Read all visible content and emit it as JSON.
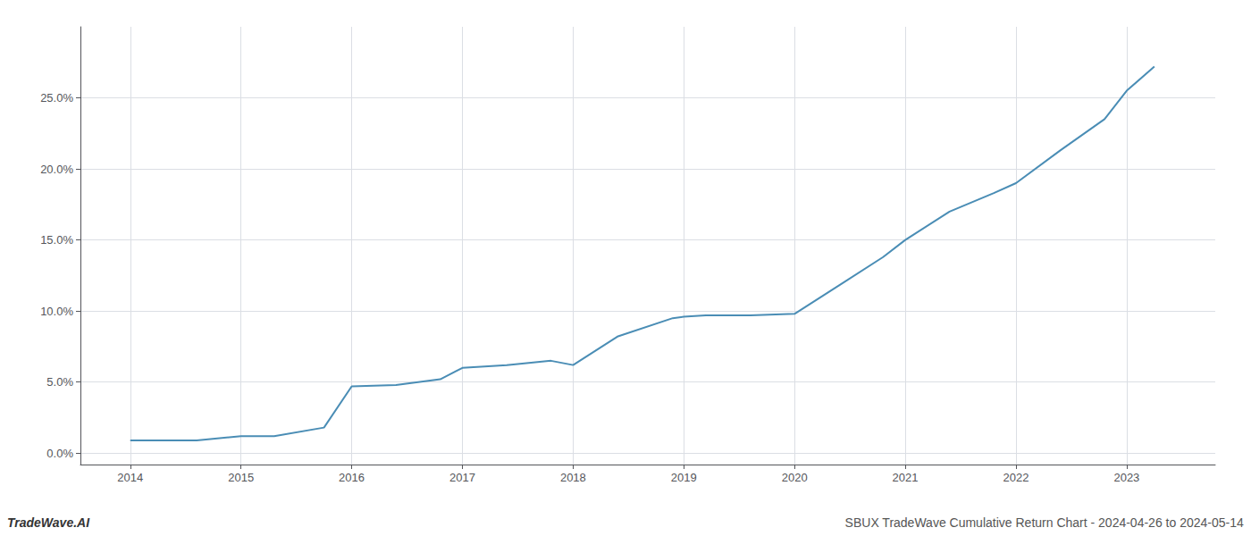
{
  "chart_data": {
    "type": "line",
    "annotations": [
      "TradeWave.AI",
      "SBUX TradeWave Cumulative Return Chart - 2024-04-26 to 2024-05-14"
    ],
    "x": [
      2014.0,
      2014.25,
      2014.6,
      2015.0,
      2015.3,
      2015.75,
      2016.0,
      2016.4,
      2016.8,
      2017.0,
      2017.4,
      2017.8,
      2018.0,
      2018.4,
      2018.9,
      2019.0,
      2019.2,
      2019.6,
      2020.0,
      2020.4,
      2020.8,
      2021.0,
      2021.4,
      2021.8,
      2022.0,
      2022.4,
      2022.8,
      2023.0,
      2023.25
    ],
    "values": [
      0.009,
      0.009,
      0.009,
      0.012,
      0.012,
      0.018,
      0.047,
      0.048,
      0.052,
      0.06,
      0.062,
      0.065,
      0.062,
      0.082,
      0.095,
      0.096,
      0.097,
      0.097,
      0.098,
      0.118,
      0.138,
      0.15,
      0.17,
      0.183,
      0.19,
      0.213,
      0.235,
      0.255,
      0.272
    ],
    "color": "#4a8db5",
    "xlim": [
      2013.55,
      2023.8
    ],
    "xticks": [
      2014,
      2015,
      2016,
      2017,
      2018,
      2019,
      2020,
      2021,
      2022,
      2023
    ],
    "ylim": [
      -0.008,
      0.3
    ],
    "yticks": [
      {
        "value": 0.0,
        "label": "0.0%"
      },
      {
        "value": 0.05,
        "label": "5.0%"
      },
      {
        "value": 0.1,
        "label": "10.0%"
      },
      {
        "value": 0.15,
        "label": "15.0%"
      },
      {
        "value": 0.2,
        "label": "20.0%"
      },
      {
        "value": 0.25,
        "label": "25.0%"
      }
    ],
    "grid": true
  }
}
